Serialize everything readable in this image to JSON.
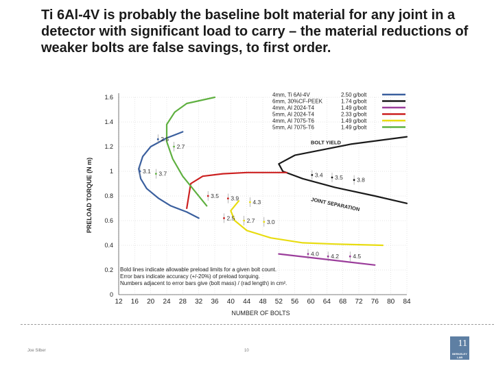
{
  "title": "Ti 6Al-4V is probably the baseline bolt material for any joint in a detector with significant load to carry – the material reductions of weaker bolts are false savings, to first order.",
  "footer": {
    "author": "Joe Silber",
    "page": "10"
  },
  "logo": {
    "text": "BERKELEY LAB",
    "mark": "11"
  },
  "chart_data": {
    "type": "line",
    "xlabel": "NUMBER OF BOLTS",
    "ylabel": "PRELOAD TORQUE (N m)",
    "xlim": [
      12,
      84
    ],
    "ylim": [
      0,
      1.6
    ],
    "xticks": [
      12,
      16,
      20,
      24,
      28,
      32,
      36,
      40,
      44,
      48,
      52,
      56,
      60,
      64,
      68,
      72,
      76,
      80,
      84
    ],
    "yticks": [
      0,
      0.2,
      0.4,
      0.6,
      0.8,
      1,
      1.2,
      1.4,
      1.6
    ],
    "grid": true,
    "legend_position": "top-right",
    "series": [
      {
        "name": "4mm, Ti 6Al-4V",
        "value_label": "2.50 g/bolt",
        "color": "#3a5f9e",
        "x": [
          28,
          24,
          20,
          18,
          17,
          17.5,
          19,
          22,
          25,
          29,
          32
        ],
        "y": [
          1.32,
          1.27,
          1.2,
          1.12,
          1.02,
          0.94,
          0.86,
          0.78,
          0.72,
          0.67,
          0.62
        ]
      },
      {
        "name": "6mm, 30%CF-PEEK",
        "value_label": "1.74 g/bolt",
        "color": "#1a1a1a",
        "x": [
          85,
          70,
          56,
          52,
          53,
          58,
          66,
          76,
          85
        ],
        "y": [
          1.28,
          1.22,
          1.13,
          1.06,
          1.0,
          0.94,
          0.87,
          0.8,
          0.74
        ]
      },
      {
        "name": "4mm, Al 2024-T4",
        "value_label": "1.49 g/bolt",
        "color": "#9b3d9b",
        "x": [
          52,
          60,
          68,
          76
        ],
        "y": [
          0.33,
          0.3,
          0.27,
          0.24
        ]
      },
      {
        "name": "5mm, Al 2024-T4",
        "value_label": "2.33 g/bolt",
        "color": "#cc2020",
        "x": [
          29,
          30,
          33,
          38,
          44,
          52,
          54
        ],
        "y": [
          0.7,
          0.9,
          0.96,
          0.98,
          0.99,
          0.99,
          0.99
        ]
      },
      {
        "name": "4mm, Al 7075-T6",
        "value_label": "1.49 g/bolt",
        "color": "#e8dc10",
        "x": [
          42,
          40,
          41,
          44,
          50,
          58,
          66,
          78
        ],
        "y": [
          0.76,
          0.68,
          0.6,
          0.52,
          0.46,
          0.42,
          0.41,
          0.4
        ]
      },
      {
        "name": "5mm, Al 7075-T6",
        "value_label": "1.49 g/bolt",
        "color": "#5fb040",
        "x": [
          36,
          29,
          26,
          24,
          24,
          25.5,
          28,
          31,
          34
        ],
        "y": [
          1.6,
          1.55,
          1.48,
          1.38,
          1.24,
          1.1,
          0.96,
          0.84,
          0.72
        ]
      }
    ],
    "point_labels": [
      {
        "text": "2.5",
        "x": 22.5,
        "y": 1.26,
        "color": "#3a5f9e"
      },
      {
        "text": "2.7",
        "x": 26.5,
        "y": 1.2,
        "color": "#5fb040"
      },
      {
        "text": "3.1",
        "x": 18,
        "y": 1.0,
        "color": "#3a5f9e"
      },
      {
        "text": "3.7",
        "x": 22,
        "y": 0.98,
        "color": "#5fb040"
      },
      {
        "text": "3.5",
        "x": 35,
        "y": 0.8,
        "color": "#cc2020"
      },
      {
        "text": "3.9",
        "x": 40,
        "y": 0.78,
        "color": "#cc2020"
      },
      {
        "text": "4.3",
        "x": 45.5,
        "y": 0.75,
        "color": "#e8dc10"
      },
      {
        "text": "2.5",
        "x": 39,
        "y": 0.62,
        "color": "#cc2020"
      },
      {
        "text": "2.7",
        "x": 44,
        "y": 0.6,
        "color": "#e8dc10"
      },
      {
        "text": "3.0",
        "x": 49,
        "y": 0.59,
        "color": "#e8dc10"
      },
      {
        "text": "3.4",
        "x": 61,
        "y": 0.97,
        "color": "#1a1a1a"
      },
      {
        "text": "3.5",
        "x": 66,
        "y": 0.95,
        "color": "#1a1a1a"
      },
      {
        "text": "3.8",
        "x": 71.5,
        "y": 0.93,
        "color": "#1a1a1a"
      },
      {
        "text": "4.0",
        "x": 60,
        "y": 0.33,
        "color": "#9b3d9b"
      },
      {
        "text": "4.2",
        "x": 65,
        "y": 0.31,
        "color": "#9b3d9b"
      },
      {
        "text": "4.5",
        "x": 70.5,
        "y": 0.31,
        "color": "#9b3d9b"
      }
    ],
    "annotations": [
      {
        "text": "BOLT YIELD",
        "x": 60,
        "y": 1.22
      },
      {
        "text": "JOINT SEPARATION",
        "x": 60,
        "y": 0.76,
        "rotate": 12
      }
    ],
    "note_lines": [
      "Bold lines indicate allowable preload limits for a given bolt count.",
      "Error bars indicate accuracy (+/-20%) of preload torquing.",
      "Numbers adjacent to error bars give (bolt mass) / (rad length) in cm²."
    ]
  }
}
